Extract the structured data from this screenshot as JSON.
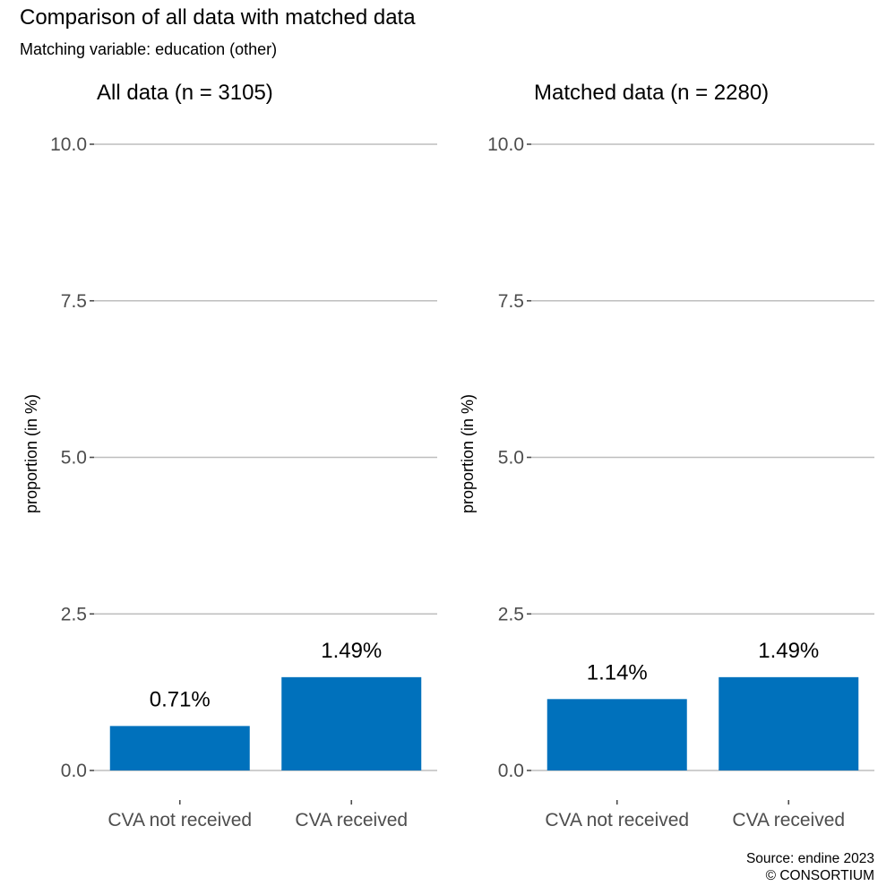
{
  "title": "Comparison of all data with matched data",
  "subtitle": "Matching variable: education (other)",
  "caption": {
    "line1": "Source: endine 2023",
    "line2": "© CONSORTIUM"
  },
  "colors": {
    "bar": "#0071BC",
    "grid": "#BEBEBE",
    "tick_text": "#4D4D4D",
    "text": "#000000"
  },
  "chart_data": [
    {
      "type": "bar",
      "title": "All data (n = 3105)",
      "categories": [
        "CVA not received",
        "CVA received"
      ],
      "values": [
        0.71,
        1.49
      ],
      "data_labels": [
        "0.71%",
        "1.49%"
      ],
      "ylabel": "proportion (in %)",
      "xlabel": "",
      "ylim": [
        0,
        10
      ],
      "yticks": [
        0.0,
        2.5,
        5.0,
        7.5,
        10.0
      ],
      "ytick_labels": [
        "0.0",
        "2.5",
        "5.0",
        "7.5",
        "10.0"
      ],
      "grid": "horizontal major"
    },
    {
      "type": "bar",
      "title": "Matched data (n = 2280)",
      "categories": [
        "CVA not received",
        "CVA received"
      ],
      "values": [
        1.14,
        1.49
      ],
      "data_labels": [
        "1.14%",
        "1.49%"
      ],
      "ylabel": "proportion (in %)",
      "xlabel": "",
      "ylim": [
        0,
        10
      ],
      "yticks": [
        0.0,
        2.5,
        5.0,
        7.5,
        10.0
      ],
      "ytick_labels": [
        "0.0",
        "2.5",
        "5.0",
        "7.5",
        "10.0"
      ],
      "grid": "horizontal major"
    }
  ]
}
